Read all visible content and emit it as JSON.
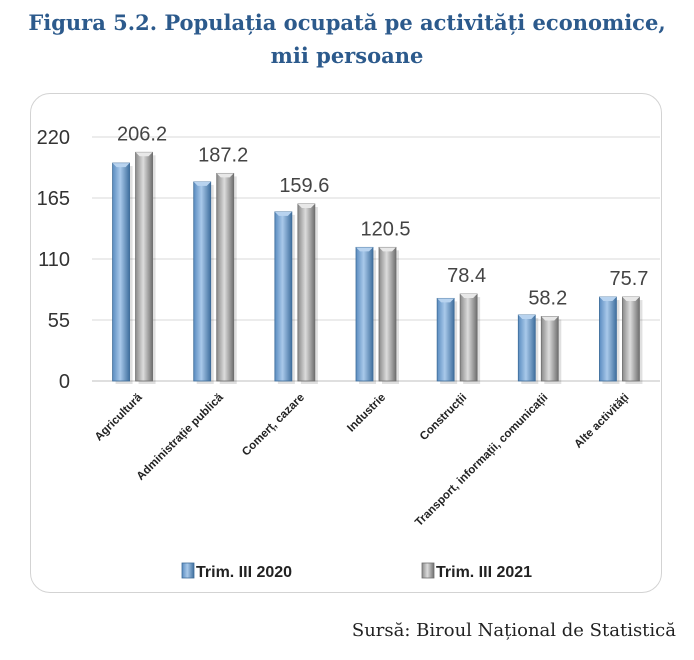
{
  "title_line1": "Figura  5.2. Populația ocupată pe activități economice,",
  "title_line2": "mii persoane",
  "source": "Sursă: Biroul Național de Statistică",
  "colors": {
    "series_2020": "#6e9fcf",
    "series_2021": "#a8a8a8",
    "title": "#2c5a8c"
  },
  "chart_data": {
    "type": "bar",
    "categories": [
      "Agricultură",
      "Administrație publică",
      "Comerț, cazare",
      "Industrie",
      "Construcții",
      "Transport, informații, comunicații",
      "Alte activități"
    ],
    "series": [
      {
        "name": "Trim. III 2020",
        "values": [
          196.5,
          179.5,
          152.5,
          120.5,
          74.5,
          59.5,
          75.7
        ]
      },
      {
        "name": "Trim. III 2021",
        "values": [
          206.2,
          187.2,
          159.6,
          120.5,
          78.4,
          58.2,
          75.7
        ]
      }
    ],
    "data_labels": [
      "206.2",
      "187.2",
      "159.6",
      "120.5",
      "78.4",
      "58.2",
      "75.7"
    ],
    "yticks": [
      0,
      55,
      110,
      165,
      220
    ],
    "ylim": [
      0,
      220
    ],
    "grid": true,
    "legend_position": "bottom"
  }
}
